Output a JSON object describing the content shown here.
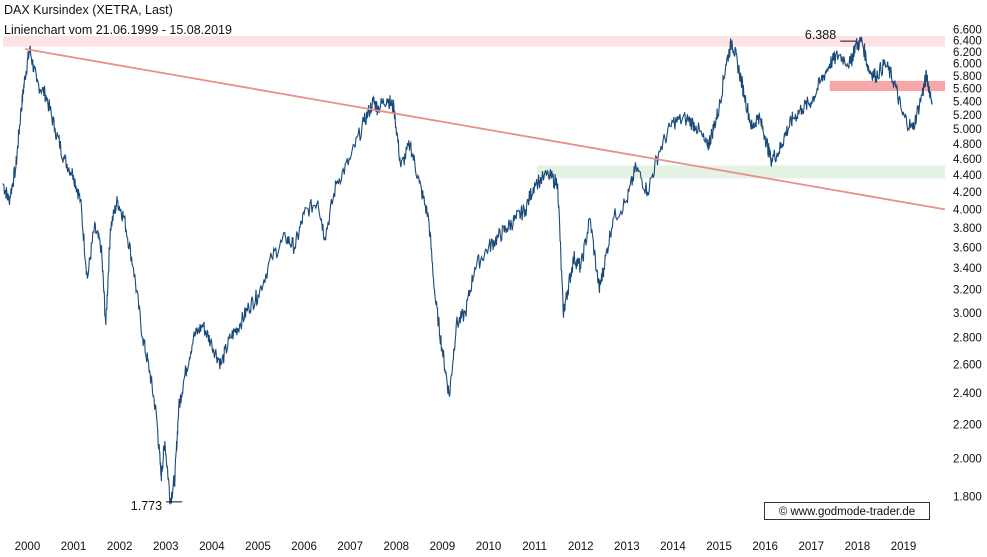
{
  "header": {
    "title": "DAX Kursindex (XETRA, Last)",
    "subtitle": "Linienchart vom 21.06.1999 - 15.08.2019"
  },
  "watermark": "© www.godmode-trader.de",
  "colors": {
    "line": "#1a4a7a",
    "trendline": "#e8908a",
    "resistance_zone": "#f6a8a8",
    "upper_zone": "#fde3e3",
    "support_zone": "#e4f2e4"
  },
  "chart_data": {
    "type": "line",
    "title": "DAX Kursindex (XETRA, Last)",
    "subtitle": "Linienchart vom 21.06.1999 - 15.08.2019",
    "y_scale": "log",
    "y_axis_position": "right",
    "grid": false,
    "ylim": [
      1700,
      6700
    ],
    "y_ticks": [
      1800,
      2000,
      2200,
      2400,
      2600,
      2800,
      3000,
      3200,
      3400,
      3600,
      3800,
      4000,
      4200,
      4400,
      4600,
      4800,
      5000,
      5200,
      5400,
      5600,
      5800,
      6000,
      6200,
      6400,
      6600
    ],
    "y_tick_labels": [
      "1.800",
      "2.000",
      "2.200",
      "2.400",
      "2.600",
      "2.800",
      "3.000",
      "3.200",
      "3.400",
      "3.600",
      "3.800",
      "4.000",
      "4.200",
      "4.400",
      "4.600",
      "4.800",
      "5.000",
      "5.200",
      "5.400",
      "5.600",
      "5.800",
      "6.000",
      "6.200",
      "6.400",
      "6.600"
    ],
    "xlim": [
      1999.47,
      2019.9
    ],
    "x_ticks": [
      2000,
      2001,
      2002,
      2003,
      2004,
      2005,
      2006,
      2007,
      2008,
      2009,
      2010,
      2011,
      2012,
      2013,
      2014,
      2015,
      2016,
      2017,
      2018,
      2019
    ],
    "x_tick_labels": [
      "2000",
      "2001",
      "2002",
      "2003",
      "2004",
      "2005",
      "2006",
      "2007",
      "2008",
      "2009",
      "2010",
      "2011",
      "2012",
      "2013",
      "2014",
      "2015",
      "2016",
      "2017",
      "2018",
      "2019"
    ],
    "series": [
      {
        "x": [
          1999.47,
          1999.6,
          1999.75,
          1999.85,
          1999.95,
          2000.05,
          2000.2,
          2000.4,
          2000.6,
          2000.8,
          2001.0,
          2001.15,
          2001.3,
          2001.45,
          2001.6,
          2001.7,
          2001.8,
          2001.95,
          2002.1,
          2002.3,
          2002.5,
          2002.65,
          2002.8,
          2002.9,
          2002.98,
          2003.1,
          2003.2,
          2003.28,
          2003.4,
          2003.6,
          2003.8,
          2004.0,
          2004.2,
          2004.4,
          2004.6,
          2004.8,
          2005.0,
          2005.3,
          2005.6,
          2005.8,
          2006.0,
          2006.3,
          2006.45,
          2006.7,
          2007.0,
          2007.3,
          2007.5,
          2007.6,
          2007.8,
          2007.95,
          2008.1,
          2008.3,
          2008.5,
          2008.7,
          2008.85,
          2009.0,
          2009.15,
          2009.3,
          2009.5,
          2009.7,
          2010.0,
          2010.2,
          2010.4,
          2010.6,
          2010.8,
          2011.0,
          2011.3,
          2011.5,
          2011.62,
          2011.72,
          2011.85,
          2012.0,
          2012.2,
          2012.4,
          2012.5,
          2012.7,
          2013.0,
          2013.2,
          2013.45,
          2013.7,
          2014.0,
          2014.3,
          2014.5,
          2014.75,
          2014.85,
          2015.0,
          2015.15,
          2015.28,
          2015.4,
          2015.55,
          2015.72,
          2015.85,
          2016.0,
          2016.12,
          2016.3,
          2016.45,
          2016.6,
          2016.8,
          2017.0,
          2017.2,
          2017.4,
          2017.6,
          2017.85,
          2017.95,
          2018.1,
          2018.25,
          2018.4,
          2018.6,
          2018.8,
          2018.98,
          2019.2,
          2019.4,
          2019.5,
          2019.62
        ],
        "y": [
          4300,
          4100,
          4500,
          5200,
          5800,
          6250,
          5700,
          5500,
          5000,
          4600,
          4400,
          4100,
          3300,
          3800,
          3600,
          2900,
          3800,
          4100,
          3900,
          3400,
          2800,
          2550,
          2250,
          1900,
          2100,
          1780,
          1900,
          2300,
          2500,
          2800,
          2900,
          2750,
          2600,
          2800,
          2900,
          3050,
          3150,
          3500,
          3700,
          3600,
          3950,
          4100,
          3700,
          4300,
          4600,
          5100,
          5400,
          5300,
          5450,
          5300,
          4500,
          4800,
          4300,
          3900,
          3100,
          2700,
          2380,
          2900,
          3000,
          3400,
          3600,
          3700,
          3800,
          3900,
          4000,
          4300,
          4400,
          4300,
          3000,
          3200,
          3500,
          3400,
          3900,
          3200,
          3400,
          3900,
          4100,
          4500,
          4200,
          4700,
          5100,
          5150,
          5050,
          4750,
          4950,
          5300,
          6000,
          6388,
          6000,
          5500,
          5000,
          5200,
          4900,
          4600,
          4700,
          4950,
          5150,
          5300,
          5400,
          5700,
          6000,
          6150,
          6000,
          6300,
          6388,
          5900,
          5800,
          6000,
          5700,
          5200,
          5000,
          5500,
          5800,
          5400
        ]
      }
    ],
    "annotations": [
      {
        "text": "6.388",
        "x": 2017.8,
        "y": 6388
      },
      {
        "text": "1.773",
        "x": 2003.18,
        "y": 1773
      }
    ],
    "trendline": {
      "x": [
        1999.95,
        2019.9
      ],
      "y": [
        6250,
        4000
      ]
    },
    "zones": [
      {
        "name": "upper",
        "x": [
          1999.47,
          2019.9
        ],
        "y": [
          6290,
          6480
        ],
        "color": "#fde3e3"
      },
      {
        "name": "resistance",
        "x": [
          2017.4,
          2019.9
        ],
        "y": [
          5560,
          5720
        ],
        "color": "#f6a8a8"
      },
      {
        "name": "support",
        "x": [
          2011.05,
          2019.9
        ],
        "y": [
          4360,
          4520
        ],
        "color": "#e4f2e4"
      }
    ]
  }
}
